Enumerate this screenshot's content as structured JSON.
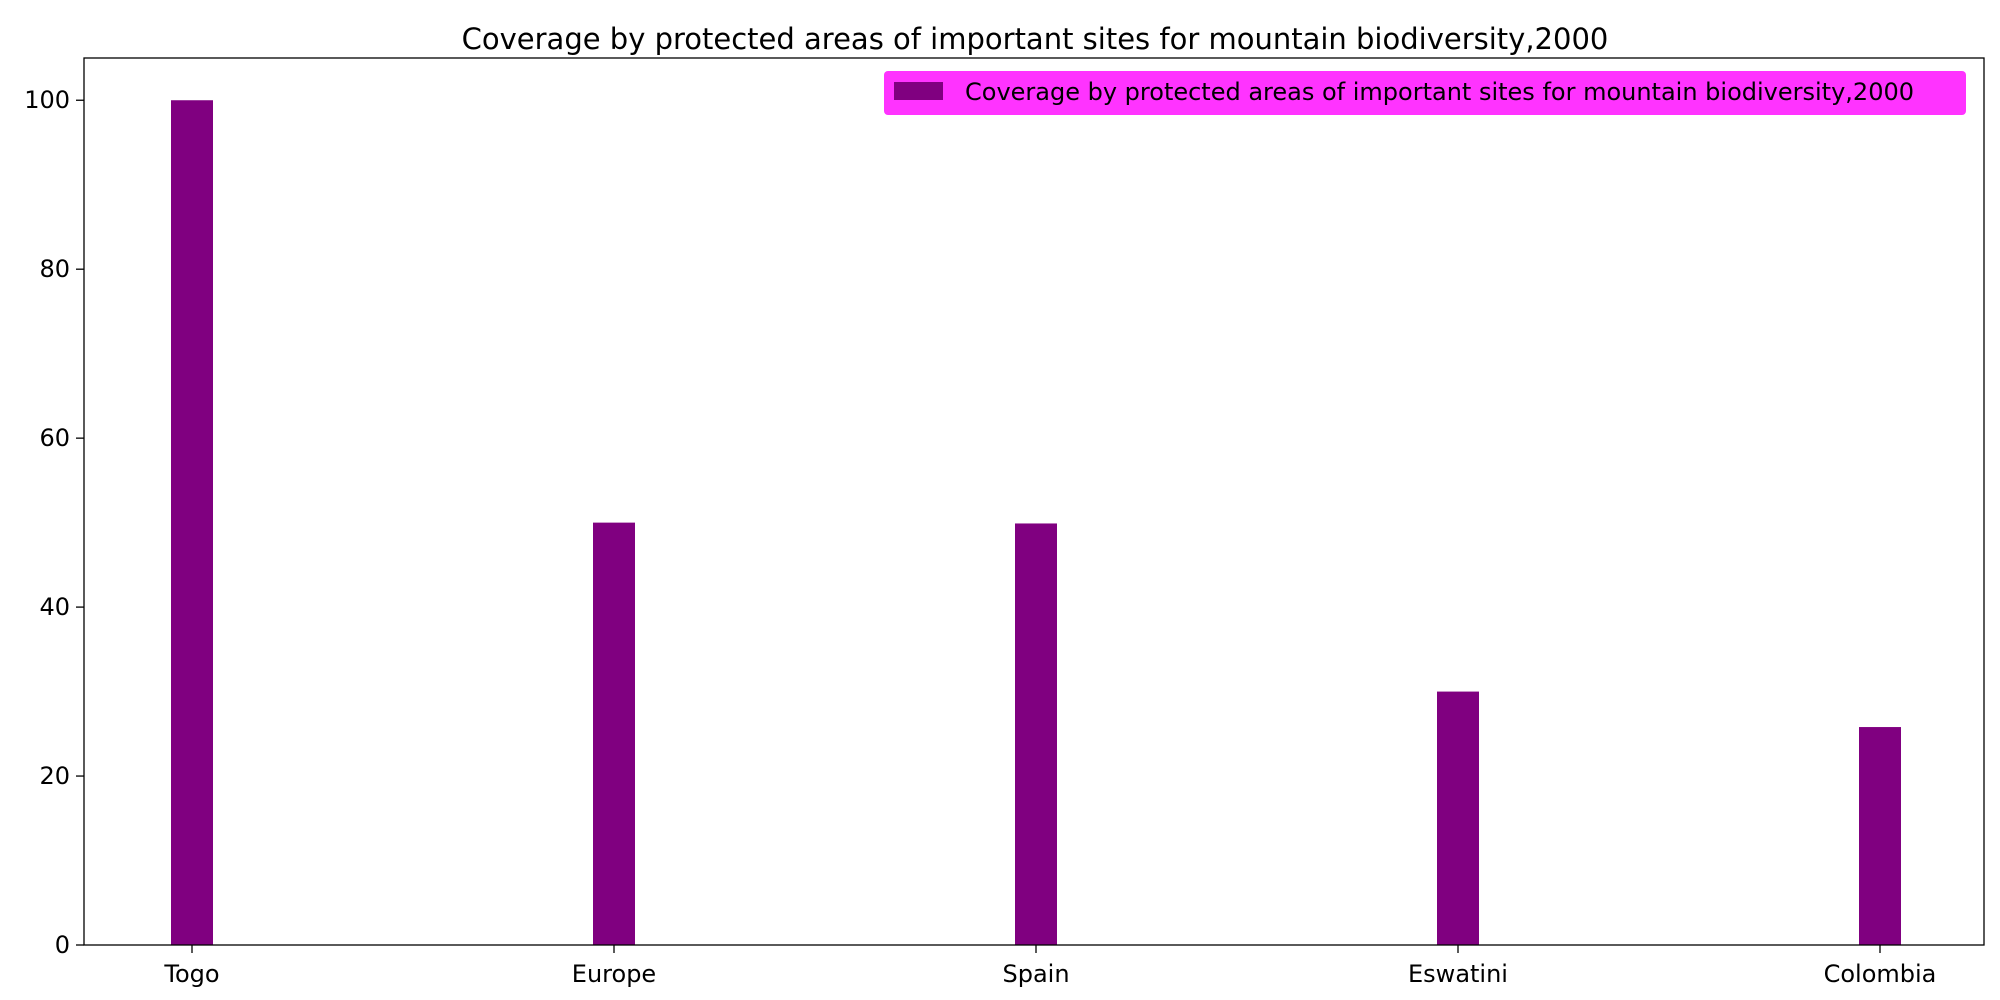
{
  "chart_data": {
    "type": "bar",
    "title": "Coverage by protected areas of important sites for mountain biodiversity,2000",
    "xlabel": "",
    "ylabel": "",
    "categories": [
      "Togo",
      "Europe",
      "Spain",
      "Eswatini",
      "Colombia"
    ],
    "series": [
      {
        "name": "Coverage by protected areas of important sites for mountain biodiversity,2000",
        "values": [
          100,
          50,
          49.9,
          30,
          25.8
        ]
      }
    ],
    "ylim": [
      0,
      105
    ],
    "yticks": [
      0,
      20,
      40,
      60,
      80,
      100
    ],
    "grid": false,
    "legend_position": "top-right",
    "colors": {
      "bar": "#800080",
      "legend_background": "#ff33ff",
      "axis": "#000000"
    }
  }
}
